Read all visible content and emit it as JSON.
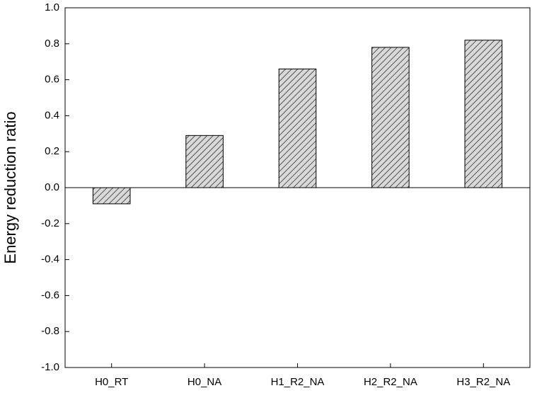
{
  "chart_data": {
    "type": "bar",
    "ylabel": "Energy reduction ratio",
    "categories": [
      "H0_RT",
      "H0_NA",
      "H1_R2_NA",
      "H2_R2_NA",
      "H3_R2_NA"
    ],
    "values": [
      -0.09,
      0.29,
      0.66,
      0.78,
      0.82
    ],
    "color": "#d9d9d9",
    "ylim": [
      -1,
      1
    ],
    "yticks": [
      {
        "value": -1,
        "label": "-1.0"
      },
      -0.8,
      -0.6,
      -0.4,
      -0.2,
      {
        "value": 0,
        "label": "0.0"
      },
      0.2,
      0.4,
      0.6,
      0.8,
      {
        "value": 1,
        "label": "1.0"
      }
    ],
    "grid": false
  }
}
